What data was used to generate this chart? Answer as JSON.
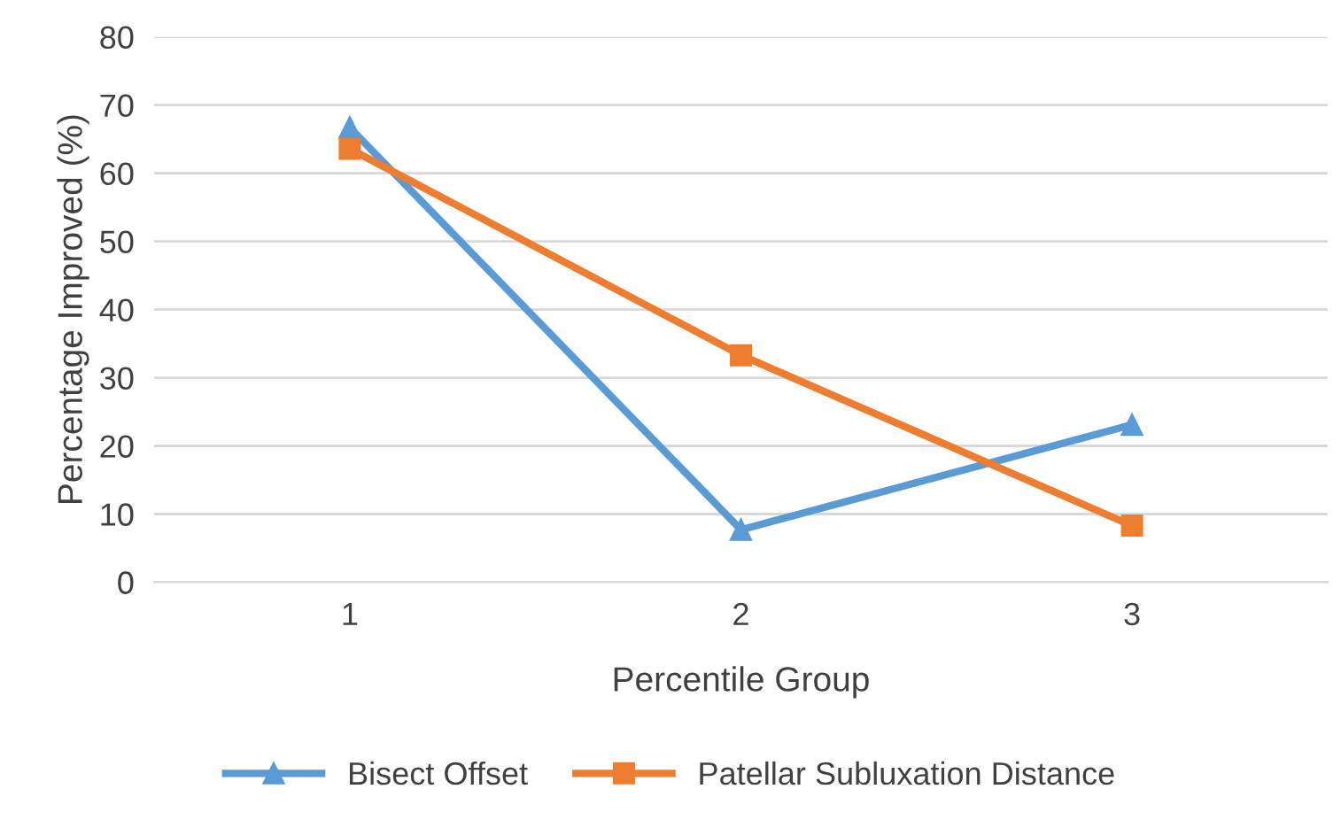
{
  "chart_data": {
    "type": "line",
    "xlabel": "Percentile Group",
    "ylabel": "Percentage Improved (%)",
    "categories": [
      "1",
      "2",
      "3"
    ],
    "series": [
      {
        "name": "Bisect Offset",
        "color": "#5b9bd5",
        "marker": "triangle",
        "values": [
          66.7,
          7.7,
          23.1
        ]
      },
      {
        "name": "Patellar Subluxation Distance",
        "color": "#ed7d31",
        "marker": "square",
        "values": [
          63.6,
          33.3,
          8.3
        ]
      }
    ],
    "ylim": [
      0,
      80
    ],
    "yticks": [
      0,
      10,
      20,
      30,
      40,
      50,
      60,
      70,
      80
    ],
    "grid": "y",
    "legend": "bottom",
    "line_style": "solid"
  }
}
